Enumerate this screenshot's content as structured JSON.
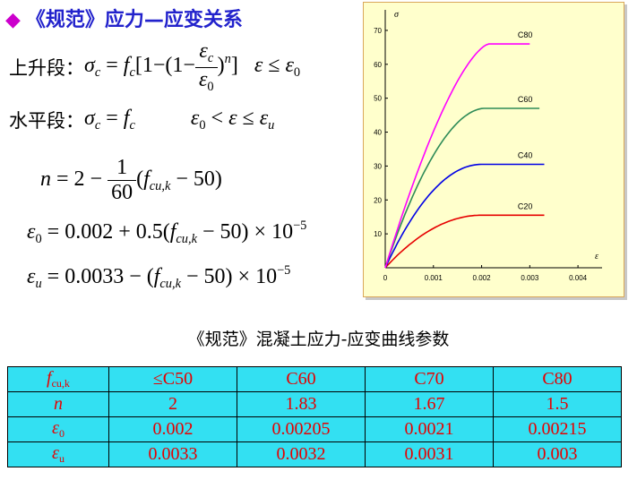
{
  "title": {
    "bullet": "◆",
    "text": "《规范》应力—应变关系"
  },
  "formulas": {
    "rise_label": "上升段：",
    "flat_label": "水平段：",
    "sigma": "σ",
    "sub_c": "c",
    "f": "f",
    "eq": "=",
    "one": "1",
    "minus": "−",
    "lbr": "[",
    "rbr": "]",
    "lpar": "(",
    "rpar": ")",
    "eps": "ε",
    "sub_0": "0",
    "sub_u": "u",
    "exp_n": "n",
    "le": "≤",
    "lt": "<",
    "n_lhs": "n",
    "n_two": "2",
    "n_frac_num": "1",
    "n_frac_den": "60",
    "sub_cuk": "cu,k",
    "minus50": "− 50)",
    "eps0_coef": "0.002 + 0.5(",
    "eps0_tail": "− 50) × 10",
    "exp_m5": "−5",
    "epsu_coef": "0.0033 − (",
    "epsu_tail": "− 50) × 10"
  },
  "chart_data": {
    "type": "line",
    "xlabel": "ε",
    "ylabel": "σ",
    "xlim": [
      0,
      0.0045
    ],
    "ylim": [
      0,
      75
    ],
    "x_ticks": [
      0,
      0.001,
      0.002,
      0.003,
      0.004
    ],
    "x_tick_labels": [
      "0",
      "0.001",
      "0.002",
      "0.003",
      "0.004"
    ],
    "y_ticks": [
      10,
      20,
      30,
      40,
      50,
      60,
      70
    ],
    "y_tick_labels": [
      "10",
      "20",
      "30",
      "40",
      "50",
      "60",
      "70"
    ],
    "series": [
      {
        "name": "C20",
        "color": "#e60000",
        "fc": 15.5,
        "n": 2,
        "e0": 0.002,
        "eu": 0.0033
      },
      {
        "name": "C40",
        "color": "#0000e6",
        "fc": 30.5,
        "n": 2,
        "e0": 0.002,
        "eu": 0.0033
      },
      {
        "name": "C60",
        "color": "#2e8b57",
        "fc": 47,
        "n": 1.83,
        "e0": 0.00205,
        "eu": 0.0032
      },
      {
        "name": "C80",
        "color": "#ff00ff",
        "fc": 66,
        "n": 1.5,
        "e0": 0.00215,
        "eu": 0.003
      }
    ]
  },
  "table": {
    "caption": "《规范》混凝土应力-应变曲线参数",
    "rows": [
      {
        "head": "f",
        "head_sub": "cu,k",
        "values": [
          "≤C50",
          "C60",
          "C70",
          "C80"
        ]
      },
      {
        "head": "n",
        "head_sub": "",
        "values": [
          "2",
          "1.83",
          "1.67",
          "1.5"
        ]
      },
      {
        "head": "ε",
        "head_sub": "0",
        "values": [
          "0.002",
          "0.00205",
          "0.0021",
          "0.00215"
        ]
      },
      {
        "head": "ε",
        "head_sub": "u",
        "values": [
          "0.0033",
          "0.0032",
          "0.0031",
          "0.003"
        ]
      }
    ]
  }
}
